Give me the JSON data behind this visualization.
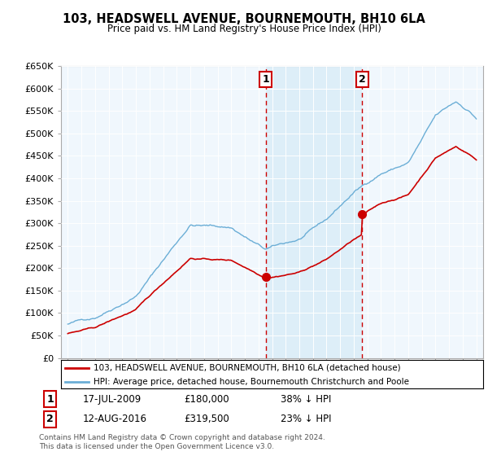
{
  "title": "103, HEADSWELL AVENUE, BOURNEMOUTH, BH10 6LA",
  "subtitle": "Price paid vs. HM Land Registry's House Price Index (HPI)",
  "ylim": [
    0,
    650000
  ],
  "yticks": [
    0,
    50000,
    100000,
    150000,
    200000,
    250000,
    300000,
    350000,
    400000,
    450000,
    500000,
    550000,
    600000,
    650000
  ],
  "hpi_color": "#6baed6",
  "price_color": "#cc0000",
  "t_sale1": 2009.54,
  "price_sale1": 180000,
  "t_sale2": 2016.62,
  "price_sale2": 319500,
  "marker1_label": "1",
  "marker1_date": "17-JUL-2009",
  "marker1_amount": "£180,000",
  "marker1_note": "38% ↓ HPI",
  "marker2_label": "2",
  "marker2_date": "12-AUG-2016",
  "marker2_amount": "£319,500",
  "marker2_note": "23% ↓ HPI",
  "legend_line1": "103, HEADSWELL AVENUE, BOURNEMOUTH, BH10 6LA (detached house)",
  "legend_line2": "HPI: Average price, detached house, Bournemouth Christchurch and Poole",
  "footnote": "Contains HM Land Registry data © Crown copyright and database right 2024.\nThis data is licensed under the Open Government Licence v3.0.",
  "bg_color": "#ffffff",
  "plot_bg_color": "#f0f7fd",
  "shade_color": "#ddeef8"
}
